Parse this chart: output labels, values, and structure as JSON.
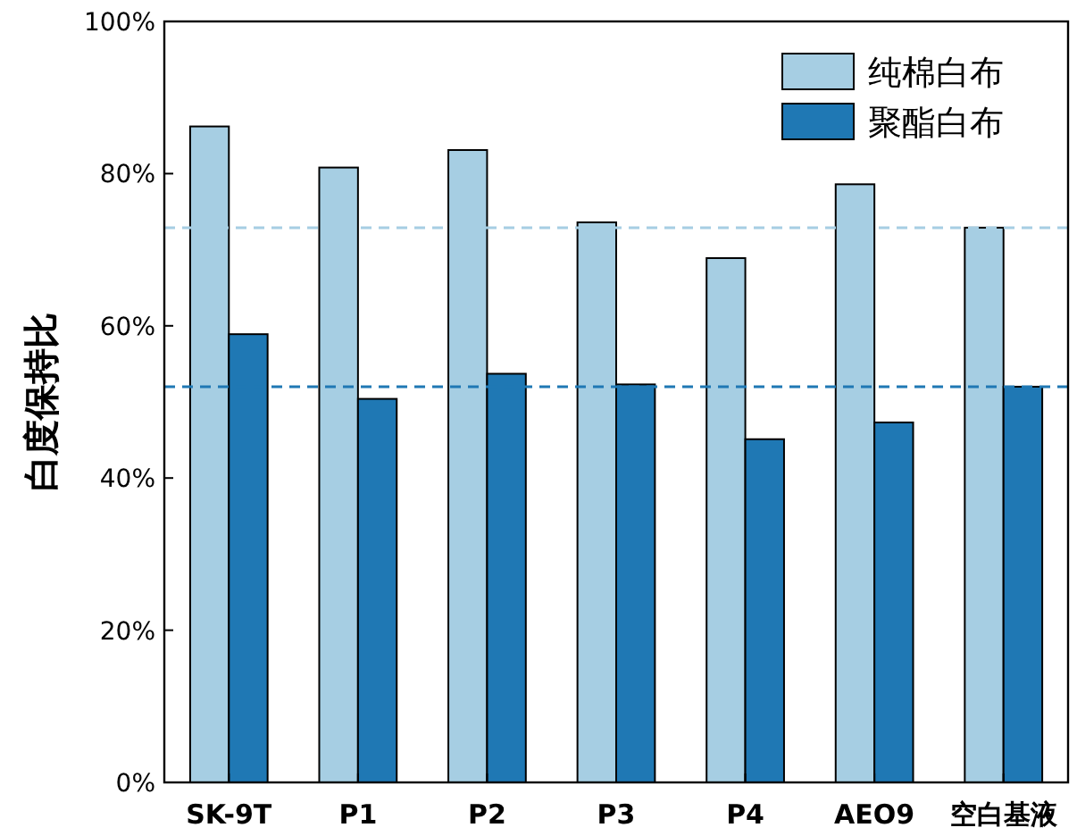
{
  "chart_data": {
    "type": "bar",
    "ylabel": "白度保持比",
    "categories": [
      "SK-9T",
      "P1",
      "P2",
      "P3",
      "P4",
      "AEO9",
      "空白基液"
    ],
    "series": [
      {
        "name": "纯棉白布",
        "color": "#a6cee3",
        "values": [
          86.2,
          80.8,
          83.1,
          73.6,
          68.9,
          78.6,
          72.9
        ]
      },
      {
        "name": "聚酯白布",
        "color": "#1f78b4",
        "values": [
          58.9,
          50.4,
          53.7,
          52.3,
          45.1,
          47.3,
          52.0
        ]
      }
    ],
    "ylim": [
      0,
      100
    ],
    "yticks": [
      {
        "value": 0,
        "label": "0%"
      },
      {
        "value": 20,
        "label": "20%"
      },
      {
        "value": 40,
        "label": "40%"
      },
      {
        "value": 60,
        "label": "60%"
      },
      {
        "value": 80,
        "label": "80%"
      },
      {
        "value": 100,
        "label": "100%"
      }
    ],
    "ref_lines": [
      {
        "axis": "y",
        "value": 72.9,
        "color": "#a6cee3",
        "line_style": "dashed"
      },
      {
        "axis": "y",
        "value": 52.0,
        "color": "#1f78b4",
        "line_style": "dashed"
      }
    ],
    "legend": "top right",
    "grid": false
  }
}
